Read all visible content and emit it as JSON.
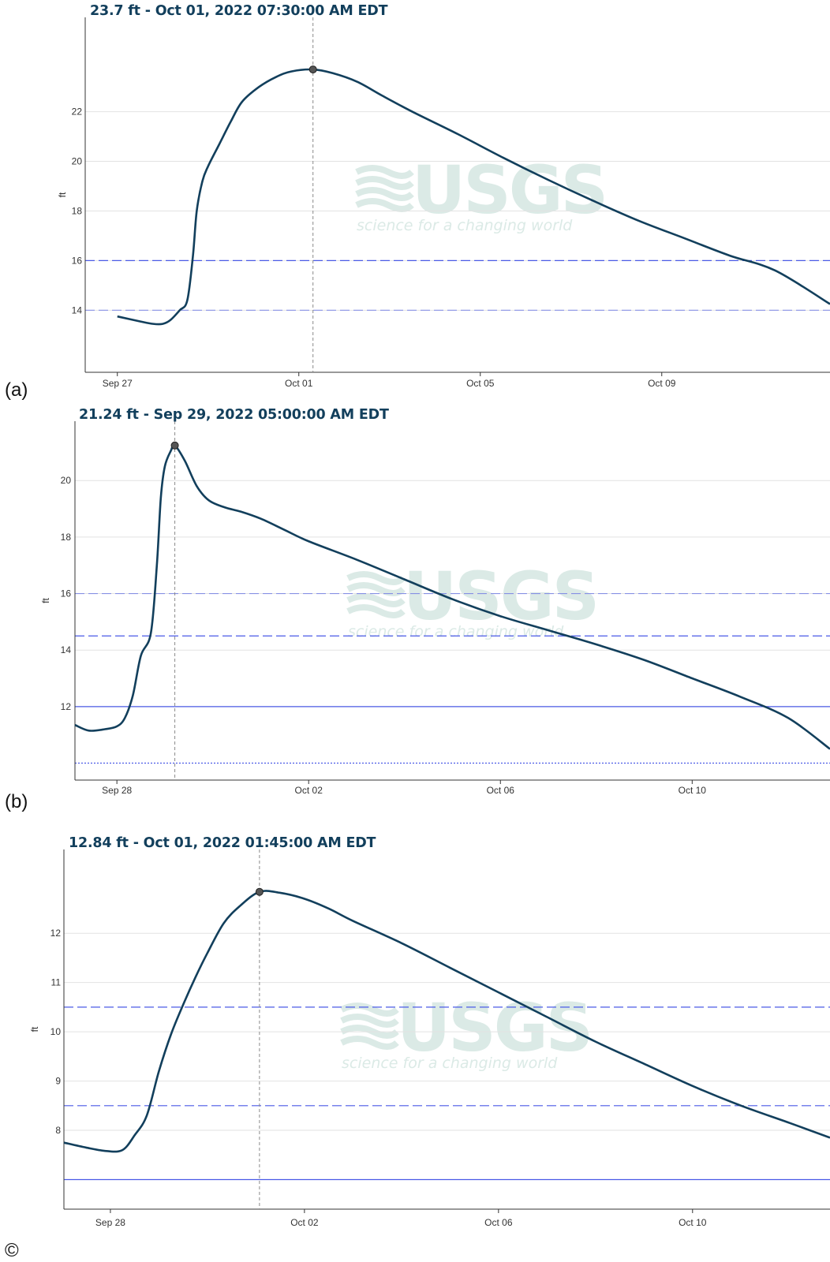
{
  "watermark": {
    "logo": "USGS",
    "tagline": "science for a changing world"
  },
  "colors": {
    "line": "#123f5c",
    "grid": "#e2e2e2",
    "threshold": "#4a5ae6",
    "cursor": "#8a8a8a",
    "axis": "#333333"
  },
  "panels": [
    {
      "panel_label": "(a)",
      "header": "23.7 ft - Oct 01, 2022 07:30:00 AM EDT",
      "ylabel": "ft"
    },
    {
      "panel_label": "(b)",
      "header": "21.24 ft - Sep 29, 2022 05:00:00 AM EDT",
      "ylabel": "ft"
    },
    {
      "panel_label": "©",
      "header": "12.84 ft - Oct 01, 2022 01:45:00 AM EDT",
      "ylabel": "ft"
    }
  ],
  "chart_data": [
    {
      "type": "line",
      "title": "23.7 ft - Oct 01, 2022 07:30:00 AM EDT",
      "ylabel": "ft",
      "xlim": [
        "2022-09-26T07:00",
        "2022-10-12T17:00"
      ],
      "ylim": [
        11.5,
        25.8
      ],
      "x_ticks": [
        {
          "x": "2022-09-27",
          "label": "Sep 27"
        },
        {
          "x": "2022-10-01",
          "label": "Oct 01"
        },
        {
          "x": "2022-10-05",
          "label": "Oct 05"
        },
        {
          "x": "2022-10-09",
          "label": "Oct 09"
        }
      ],
      "y_ticks": [
        14,
        16,
        18,
        20,
        22
      ],
      "grid": true,
      "thresholds": [
        {
          "y": 16,
          "style": "dashed"
        },
        {
          "y": 14,
          "style": "dashed-light"
        }
      ],
      "highlight": {
        "x": "2022-10-01T07:30",
        "y": 23.7
      },
      "series": [
        {
          "x": [
            "2022-09-27T00:00",
            "2022-09-27T12:00",
            "2022-09-27T19:00",
            "2022-09-28T00:00",
            "2022-09-28T04:00",
            "2022-09-28T09:00",
            "2022-09-28T13:00",
            "2022-09-28T16:00",
            "2022-09-28T18:00",
            "2022-09-28T21:00",
            "2022-09-29T00:00",
            "2022-09-29T06:00",
            "2022-09-29T12:00",
            "2022-09-29T18:00",
            "2022-09-30T03:00",
            "2022-09-30T12:00",
            "2022-09-30T20:00",
            "2022-10-01T07:30",
            "2022-10-01T18:00",
            "2022-10-02T07:00",
            "2022-10-02T20:00",
            "2022-10-03T12:00",
            "2022-10-04T12:00",
            "2022-10-05T12:00",
            "2022-10-06T12:00",
            "2022-10-07T12:00",
            "2022-10-08T12:00",
            "2022-10-09T12:00",
            "2022-10-10T12:00",
            "2022-10-11T12:00",
            "2022-10-12T17:00"
          ],
          "y": [
            13.75,
            13.55,
            13.45,
            13.45,
            13.6,
            14.0,
            14.4,
            16.2,
            18.0,
            19.2,
            19.8,
            20.7,
            21.6,
            22.4,
            23.0,
            23.4,
            23.62,
            23.7,
            23.55,
            23.2,
            22.65,
            22.0,
            21.1,
            20.15,
            19.25,
            18.4,
            17.6,
            16.9,
            16.2,
            15.6,
            14.25
          ]
        }
      ]
    },
    {
      "type": "line",
      "title": "21.24 ft - Sep 29, 2022 05:00:00 AM EDT",
      "ylabel": "ft",
      "xlim": [
        "2022-09-27T03:00",
        "2022-10-12T21:00"
      ],
      "ylim": [
        9.4,
        22.1
      ],
      "x_ticks": [
        {
          "x": "2022-09-28",
          "label": "Sep 28"
        },
        {
          "x": "2022-10-02",
          "label": "Oct 02"
        },
        {
          "x": "2022-10-06",
          "label": "Oct 06"
        },
        {
          "x": "2022-10-10",
          "label": "Oct 10"
        }
      ],
      "y_ticks": [
        12,
        14,
        16,
        18,
        20
      ],
      "grid": true,
      "thresholds": [
        {
          "y": 16,
          "style": "dashed-light"
        },
        {
          "y": 14.5,
          "style": "dashed"
        },
        {
          "y": 12,
          "style": "solid"
        },
        {
          "y": 10,
          "style": "dotted"
        }
      ],
      "highlight": {
        "x": "2022-09-29T05:00",
        "y": 21.24
      },
      "series": [
        {
          "x": [
            "2022-09-27T03:00",
            "2022-09-27T10:00",
            "2022-09-27T18:00",
            "2022-09-28T00:00",
            "2022-09-28T04:00",
            "2022-09-28T08:00",
            "2022-09-28T12:00",
            "2022-09-28T17:00",
            "2022-09-28T20:00",
            "2022-09-28T22:00",
            "2022-09-29T00:00",
            "2022-09-29T03:00",
            "2022-09-29T05:00",
            "2022-09-29T10:00",
            "2022-09-29T16:00",
            "2022-09-29T22:00",
            "2022-09-30T06:00",
            "2022-09-30T14:00",
            "2022-10-01T00:00",
            "2022-10-01T12:00",
            "2022-10-02T00:00",
            "2022-10-03T00:00",
            "2022-10-04T00:00",
            "2022-10-05T00:00",
            "2022-10-06T00:00",
            "2022-10-07T00:00",
            "2022-10-08T00:00",
            "2022-10-09T00:00",
            "2022-10-10T00:00",
            "2022-10-11T00:00",
            "2022-10-12T00:00",
            "2022-10-12T21:00"
          ],
          "y": [
            11.35,
            11.15,
            11.2,
            11.3,
            11.6,
            12.4,
            13.8,
            14.6,
            17.0,
            19.4,
            20.5,
            21.05,
            21.24,
            20.7,
            19.8,
            19.3,
            19.05,
            18.9,
            18.65,
            18.25,
            17.85,
            17.2,
            16.5,
            15.8,
            15.2,
            14.7,
            14.2,
            13.65,
            13.0,
            12.35,
            11.6,
            10.5
          ]
        }
      ]
    },
    {
      "type": "line",
      "title": "12.84 ft - Oct 01, 2022 01:45:00 AM EDT",
      "ylabel": "ft",
      "xlim": [
        "2022-09-27T01:00",
        "2022-10-12T20:00"
      ],
      "ylim": [
        6.4,
        13.7
      ],
      "x_ticks": [
        {
          "x": "2022-09-28",
          "label": "Sep 28"
        },
        {
          "x": "2022-10-02",
          "label": "Oct 02"
        },
        {
          "x": "2022-10-06",
          "label": "Oct 06"
        },
        {
          "x": "2022-10-10",
          "label": "Oct 10"
        }
      ],
      "y_ticks": [
        8,
        9,
        10,
        11,
        12
      ],
      "grid": true,
      "thresholds": [
        {
          "y": 10.5,
          "style": "dashed"
        },
        {
          "y": 8.5,
          "style": "dashed"
        },
        {
          "y": 7.0,
          "style": "solid"
        }
      ],
      "highlight": {
        "x": "2022-10-01T01:45",
        "y": 12.84
      },
      "series": [
        {
          "x": [
            "2022-09-27T01:00",
            "2022-09-27T12:00",
            "2022-09-27T22:00",
            "2022-09-28T06:00",
            "2022-09-28T12:00",
            "2022-09-28T18:00",
            "2022-09-29T00:00",
            "2022-09-29T06:00",
            "2022-09-29T12:00",
            "2022-09-29T18:00",
            "2022-09-30T00:00",
            "2022-09-30T08:00",
            "2022-09-30T16:00",
            "2022-10-01T01:45",
            "2022-10-01T12:00",
            "2022-10-02T00:00",
            "2022-10-02T12:00",
            "2022-10-03T00:00",
            "2022-10-04T00:00",
            "2022-10-05T00:00",
            "2022-10-06T00:00",
            "2022-10-07T00:00",
            "2022-10-08T00:00",
            "2022-10-09T00:00",
            "2022-10-10T00:00",
            "2022-10-11T00:00",
            "2022-10-12T00:00",
            "2022-10-12T20:00"
          ],
          "y": [
            7.75,
            7.65,
            7.58,
            7.6,
            7.9,
            8.3,
            9.2,
            9.95,
            10.55,
            11.1,
            11.6,
            12.2,
            12.55,
            12.84,
            12.82,
            12.7,
            12.5,
            12.25,
            11.8,
            11.3,
            10.8,
            10.3,
            9.8,
            9.35,
            8.9,
            8.5,
            8.15,
            7.85
          ]
        }
      ]
    }
  ]
}
